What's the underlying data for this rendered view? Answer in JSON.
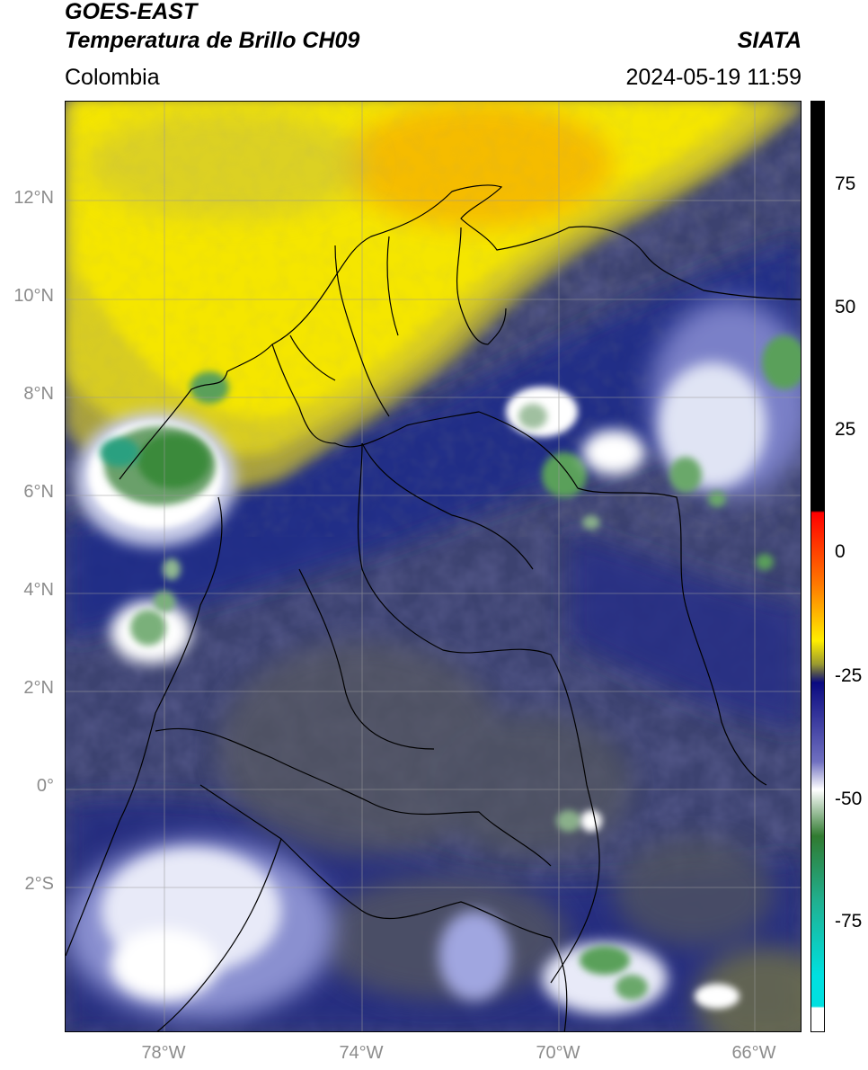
{
  "header": {
    "satellite": "GOES-EAST",
    "product": "Temperatura de Brillo CH09",
    "org": "SIATA",
    "region": "Colombia",
    "datetime": "2024-05-19 11:59"
  },
  "map": {
    "lat_labels": [
      "12°N",
      "10°N",
      "8°N",
      "6°N",
      "4°N",
      "2°N",
      "0°",
      "2°S"
    ],
    "lon_labels": [
      "78°W",
      "74°W",
      "70°W",
      "66°W"
    ],
    "colors": {
      "warm_yellow": "#f5e400",
      "hot_orange": "#f5b000",
      "olive": "#6a6a3a",
      "navy": "#1f2a8a",
      "gray_blue": "#4a4f7a",
      "white_cloud": "#ffffff",
      "cold_green": "#3a9a3a",
      "coast_line": "#000000"
    }
  },
  "colorbar": {
    "labels": [
      "75",
      "50",
      "25",
      "0",
      "-25",
      "-50",
      "-75"
    ],
    "stops": [
      "#000000",
      "#000000",
      "#ff0000",
      "#ff8800",
      "#ffee00",
      "#b0b030",
      "#4a4a4a",
      "#1a1aa0",
      "#ffffff",
      "#2a8a2a",
      "#00e0e0",
      "#ffffff"
    ]
  }
}
